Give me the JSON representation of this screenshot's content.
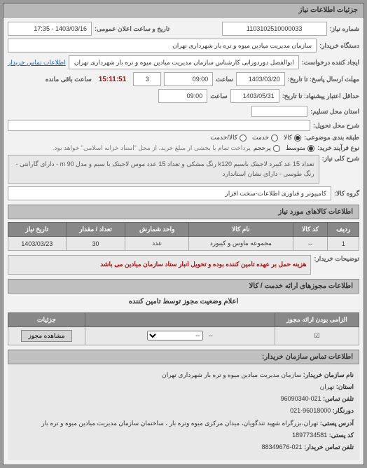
{
  "page": {
    "section_title": "جزئیات اطلاعات نیاز",
    "fields": {
      "reqnum_label": "شماره نیاز:",
      "reqnum_value": "1103102510000033",
      "announce_label": "تاریخ و ساعت اعلان عمومی:",
      "announce_value": "1403/03/16 - 17:35",
      "buyer_label": "دستگاه خریدار:",
      "buyer_value": "سازمان مدیریت میادین میوه و تره بار شهرداری تهران",
      "requester_label": "ایجاد کننده درخواست:",
      "requester_value": "ابوالفضل دوردوزانی کارشناس سازمان مدیریت میادین میوه و تره بار شهرداری تهران",
      "contact_link": "اطلاعات تماس خریدار",
      "deadline_label": "مهلت ارسال پاسخ: تا تاریخ:",
      "deadline_date": "1403/03/20",
      "time_label": "ساعت",
      "deadline_time": "09:00",
      "days_box": "3",
      "countdown": "15:11:51",
      "remaining_label": "ساعت باقی مانده",
      "credit_label": "حداقل اعتبار پیشنهاد: تا تاریخ:",
      "credit_date": "1403/05/31",
      "credit_time": "09:00",
      "province_label": "استان محل تسلیم:",
      "delivery_label": "شرح محل تحویل:",
      "priority_label": "طبقه بندی موضوعی:",
      "priority_opts": {
        "a": "کالا",
        "b": "خدمت",
        "c": "کالا/خدمت"
      },
      "buytype_label": "نوع فرآیند خرید:",
      "buytype_opts": {
        "a": "متوسط",
        "b": "پرحجم"
      },
      "buytype_note": "پرداخت تمام یا بخشی از مبلغ خرید، از محل \"اسناد خزانه اسلامی\" خواهد بود.",
      "desc_label": "شرح کلی نیاز:",
      "desc_text": "تعداد 15 عد کیبرد لاجیتک باسیم k120 رنگ مشکی و تعداد 15 عدد موس لاجیتک با سیم و مدل m 90 - دارای گارانتی - رنگ طوسی - دارای نشان استاندارد",
      "group_label": "گروه کالا:",
      "group_value": "کامپیوتر و فناوری اطلاعات-سخت افزار"
    },
    "items_header": "اطلاعات کالاهای مورد نیاز",
    "items_table": {
      "columns": [
        "ردیف",
        "کد کالا",
        "نام کالا",
        "واحد شمارش",
        "تعداد / مقدار",
        "تاریخ نیاز"
      ],
      "rows": [
        [
          "1",
          "--",
          "مجموعه ماوس و کیبورد",
          "عدد",
          "30",
          "1403/03/23"
        ]
      ]
    },
    "buyer_note_label": "توضیحات خریدار:",
    "buyer_note_text": "هزینه حمل بر عهده تامین کننده بوده و تحویل انبار ستاد سازمان میادین می باشد",
    "permits_header": "اطلاعات مجوزهای ارائه خدمت / کالا",
    "permits_title": "اعلام وضعیت مجوز توسط تامین کننده",
    "permits_table": {
      "columns": [
        "الزامی بودن ارائه مجوز",
        "",
        "جزئیات"
      ],
      "row": {
        "mandatory": "☑",
        "mid": "--",
        "select_placeholder": "--",
        "btn": "مشاهده مجوز"
      }
    },
    "contact_header": "اطلاعات تماس سازمان خریدار:",
    "contact": {
      "org_label": "نام سازمان خریدار:",
      "org_value": "سازمان مدیریت میادین میوه و تره بار شهرداری تهران",
      "prov_label": "استان:",
      "prov_value": "تهران",
      "tel_label": "تلفن تماس:",
      "tel_value": "021-96090340",
      "fax_label": "دورنگار:",
      "fax_value": "96018000-021",
      "addr_label": "آدرس پستی:",
      "addr_value": "تهران،بزرگراه شهید تندگویان، میدان مرکزی میوه وتره بار ، ساختمان سازمان مدیریت میادین میوه و تره بار",
      "post_label": "کد پستی:",
      "post_value": "1897734581",
      "buyer_tel_label": "تلفن تماس خریدار:",
      "buyer_tel_value": "021-88349676"
    }
  }
}
